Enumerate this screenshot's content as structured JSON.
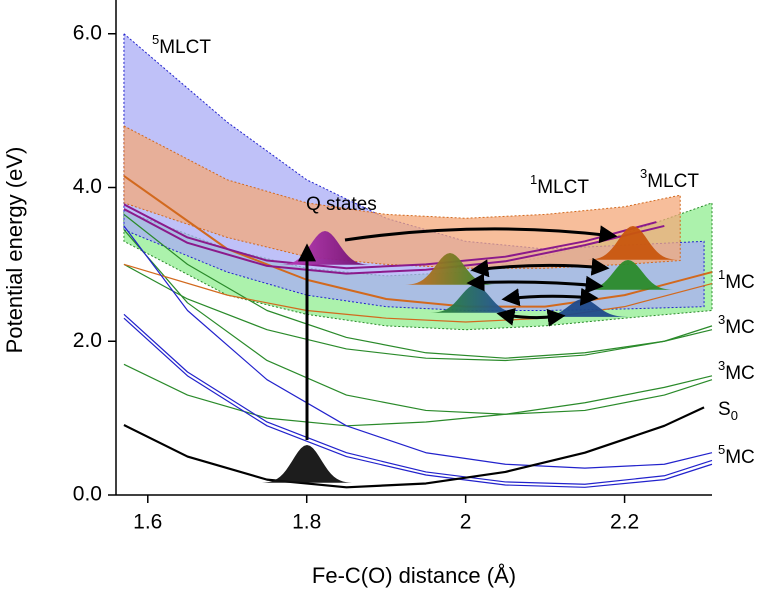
{
  "chart_data": {
    "type": "line",
    "x_label": "Fe-C(O) distance (Å)",
    "y_label": "Potential energy (eV)",
    "xlim": [
      1.56,
      2.31
    ],
    "ylim": [
      0,
      6.4
    ],
    "xticks": [
      1.6,
      1.8,
      2.0,
      2.2
    ],
    "yticks": [
      {
        "value": 0,
        "label": "0.0"
      },
      {
        "value": 2,
        "label": "2.0"
      },
      {
        "value": 4,
        "label": "4.0"
      },
      {
        "value": 6,
        "label": "6.0"
      }
    ],
    "bands": [
      {
        "color": "#90ee90",
        "edge": "#2a8a2a",
        "x": [
          1.57,
          1.7,
          1.8,
          1.9,
          2.0,
          2.1,
          2.2,
          2.31
        ],
        "upper": [
          3.7,
          3.2,
          2.95,
          2.85,
          2.9,
          3.1,
          3.4,
          3.8
        ],
        "lower": [
          3.3,
          2.6,
          2.35,
          2.2,
          2.15,
          2.2,
          2.3,
          2.4
        ]
      },
      {
        "color": "#a9acf5",
        "edge": "#2222cc",
        "x": [
          1.57,
          1.7,
          1.8,
          1.9,
          2.0,
          2.1,
          2.2,
          2.3
        ],
        "upper": [
          6.0,
          4.85,
          4.1,
          3.6,
          3.3,
          3.2,
          3.25,
          3.3
        ],
        "lower": [
          3.45,
          2.9,
          2.6,
          2.45,
          2.4,
          2.4,
          2.42,
          2.45
        ]
      },
      {
        "color": "#f4a87a",
        "edge": "#d2691e",
        "x": [
          1.57,
          1.7,
          1.8,
          1.9,
          2.0,
          2.1,
          2.2,
          2.27
        ],
        "upper": [
          4.8,
          4.1,
          3.8,
          3.65,
          3.6,
          3.65,
          3.75,
          3.9
        ],
        "lower": [
          3.8,
          3.35,
          3.1,
          3.0,
          2.95,
          2.95,
          3.0,
          3.05
        ]
      }
    ],
    "series": [
      {
        "color": "#2a8a2a",
        "linewidth": 1.2,
        "x": [
          1.57,
          1.65,
          1.75,
          1.85,
          1.95,
          2.05,
          2.15,
          2.25,
          2.31
        ],
        "values": [
          1.7,
          1.3,
          1.0,
          0.9,
          0.95,
          1.05,
          1.2,
          1.4,
          1.55
        ]
      },
      {
        "color": "#2a8a2a",
        "linewidth": 1.2,
        "x": [
          1.57,
          1.65,
          1.75,
          1.85,
          1.95,
          2.05,
          2.15,
          2.25,
          2.31
        ],
        "values": [
          3.45,
          2.5,
          1.75,
          1.3,
          1.1,
          1.05,
          1.1,
          1.3,
          1.5
        ]
      },
      {
        "color": "#2a8a2a",
        "linewidth": 1.2,
        "x": [
          1.57,
          1.65,
          1.75,
          1.85,
          1.95,
          2.05,
          2.15,
          2.25,
          2.31
        ],
        "values": [
          3.0,
          2.55,
          2.15,
          1.9,
          1.78,
          1.75,
          1.82,
          2.0,
          2.2
        ]
      },
      {
        "color": "#2a8a2a",
        "linewidth": 1.2,
        "x": [
          1.57,
          1.65,
          1.75,
          1.85,
          1.95,
          2.05,
          2.15,
          2.25,
          2.31
        ],
        "values": [
          3.65,
          3.0,
          2.4,
          2.05,
          1.85,
          1.78,
          1.85,
          2.0,
          2.15
        ]
      },
      {
        "color": "#d2691e",
        "linewidth": 1.2,
        "x": [
          1.57,
          1.7,
          1.8,
          1.9,
          2.0,
          2.1,
          2.2,
          2.31
        ],
        "values": [
          3.0,
          2.6,
          2.4,
          2.3,
          2.25,
          2.3,
          2.45,
          2.75
        ]
      },
      {
        "color": "#d2691e",
        "linewidth": 2,
        "x": [
          1.57,
          1.7,
          1.8,
          1.9,
          2.0,
          2.1,
          2.2,
          2.31
        ],
        "values": [
          4.15,
          3.2,
          2.8,
          2.55,
          2.45,
          2.45,
          2.6,
          2.9
        ]
      },
      {
        "color": "#2222cc",
        "linewidth": 1.2,
        "x": [
          1.57,
          1.65,
          1.75,
          1.85,
          1.95,
          2.05,
          2.15,
          2.25,
          2.31
        ],
        "values": [
          2.35,
          1.6,
          0.95,
          0.55,
          0.3,
          0.17,
          0.14,
          0.25,
          0.45
        ]
      },
      {
        "color": "#2222cc",
        "linewidth": 1.2,
        "x": [
          1.57,
          1.65,
          1.75,
          1.85,
          1.95,
          2.05,
          2.15,
          2.25,
          2.31
        ],
        "values": [
          2.3,
          1.55,
          0.9,
          0.5,
          0.26,
          0.13,
          0.1,
          0.2,
          0.4
        ]
      },
      {
        "color": "#2222cc",
        "linewidth": 1.2,
        "x": [
          1.57,
          1.65,
          1.75,
          1.85,
          1.95,
          2.05,
          2.15,
          2.25,
          2.31
        ],
        "values": [
          3.5,
          2.4,
          1.5,
          0.9,
          0.55,
          0.4,
          0.35,
          0.4,
          0.55
        ]
      },
      {
        "color": "#8b1a8b",
        "linewidth": 2,
        "x": [
          1.57,
          1.65,
          1.75,
          1.85,
          1.95,
          2.05,
          2.15,
          2.24
        ],
        "values": [
          3.78,
          3.35,
          3.05,
          2.95,
          3.0,
          3.1,
          3.3,
          3.55
        ]
      },
      {
        "color": "#8b1a8b",
        "linewidth": 2,
        "x": [
          1.57,
          1.65,
          1.75,
          1.85,
          1.95,
          2.05,
          2.15,
          2.25
        ],
        "values": [
          3.72,
          3.28,
          2.98,
          2.88,
          2.93,
          3.04,
          3.25,
          3.5
        ]
      },
      {
        "color": "#000000",
        "linewidth": 2.2,
        "x": [
          1.57,
          1.65,
          1.75,
          1.85,
          1.95,
          2.05,
          2.15,
          2.25,
          2.3
        ],
        "values": [
          0.91,
          0.5,
          0.2,
          0.1,
          0.15,
          0.3,
          0.55,
          0.9,
          1.14
        ]
      }
    ],
    "annotations": [
      {
        "sup": "5",
        "text": "MLCT",
        "color": "#2222cc"
      },
      {
        "text": "Q states",
        "color": "#8b1a8b"
      },
      {
        "sup": "1",
        "text": "MLCT",
        "color": "#d2691e"
      },
      {
        "sup": "3",
        "text": "MLCT",
        "color": "#2a8a2a"
      },
      {
        "sup": "1",
        "text": "MC",
        "color": "#d2691e"
      },
      {
        "sup": "3",
        "text": "MC",
        "color": "#2a8a2a"
      },
      {
        "sup": "3",
        "text": "MC",
        "color": "#2a8a2a"
      },
      {
        "text": "S",
        "sub": "0",
        "color": "#000000"
      },
      {
        "sup": "5",
        "text": "MC",
        "color": "#2222cc"
      }
    ]
  }
}
